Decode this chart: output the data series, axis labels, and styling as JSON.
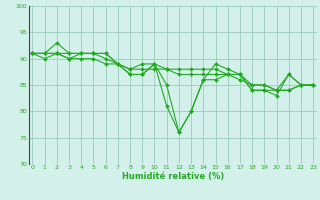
{
  "x": [
    0,
    1,
    2,
    3,
    4,
    5,
    6,
    7,
    8,
    9,
    10,
    11,
    12,
    13,
    14,
    15,
    16,
    17,
    18,
    19,
    20,
    21,
    22,
    23
  ],
  "line1": [
    91,
    91,
    93,
    91,
    91,
    91,
    91,
    89,
    87,
    87,
    89,
    85,
    76,
    80,
    86,
    89,
    88,
    87,
    84,
    84,
    84,
    87,
    85,
    85
  ],
  "line2": [
    91,
    91,
    91,
    90,
    91,
    91,
    91,
    89,
    87,
    87,
    89,
    81,
    76,
    80,
    86,
    86,
    87,
    87,
    84,
    84,
    83,
    87,
    85,
    85
  ],
  "line3": [
    91,
    91,
    91,
    91,
    91,
    91,
    90,
    89,
    88,
    89,
    89,
    88,
    88,
    88,
    88,
    88,
    87,
    87,
    85,
    85,
    84,
    84,
    85,
    85
  ],
  "line4": [
    91,
    90,
    91,
    90,
    90,
    90,
    89,
    89,
    88,
    88,
    88,
    88,
    87,
    87,
    87,
    87,
    87,
    86,
    85,
    85,
    84,
    84,
    85,
    85
  ],
  "line_color": "#22aa22",
  "bg_color": "#d4f0eb",
  "grid_color": "#99ccbb",
  "xlabel": "Humidité relative (%)",
  "xlabel_color": "#22aa22",
  "ylim": [
    70,
    100
  ],
  "yticks": [
    70,
    75,
    80,
    85,
    90,
    95,
    100
  ],
  "xticks": [
    0,
    1,
    2,
    3,
    4,
    5,
    6,
    7,
    8,
    9,
    10,
    11,
    12,
    13,
    14,
    15,
    16,
    17,
    18,
    19,
    20,
    21,
    22,
    23
  ],
  "tick_color": "#22aa22",
  "markersize": 2.0,
  "linewidth": 0.8
}
